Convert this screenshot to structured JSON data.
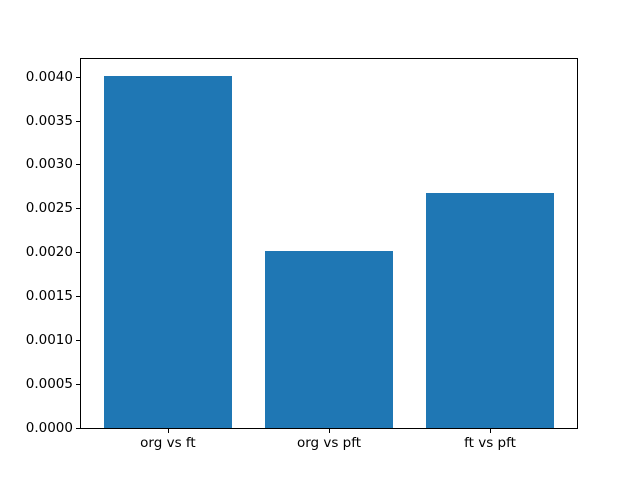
{
  "chart_data": {
    "type": "bar",
    "categories": [
      "org vs ft",
      "org vs pft",
      "ft vs pft"
    ],
    "values": [
      0.00401,
      0.00202,
      0.00268
    ],
    "title": "",
    "xlabel": "",
    "ylabel": "",
    "ylim": [
      0,
      0.0042
    ],
    "yticks": [
      0.0,
      0.0005,
      0.001,
      0.0015,
      0.002,
      0.0025,
      0.003,
      0.0035,
      0.004
    ],
    "ytick_labels": [
      "0.0000",
      "0.0005",
      "0.0010",
      "0.0015",
      "0.0020",
      "0.0025",
      "0.0030",
      "0.0035",
      "0.0040"
    ],
    "bar_color": "#1f77b4",
    "bar_width_fraction": 0.8,
    "x_margin_units": 0.54,
    "grid": false,
    "legend_position": "none",
    "background_color": "#ffffff",
    "spine_color": "#000000"
  }
}
